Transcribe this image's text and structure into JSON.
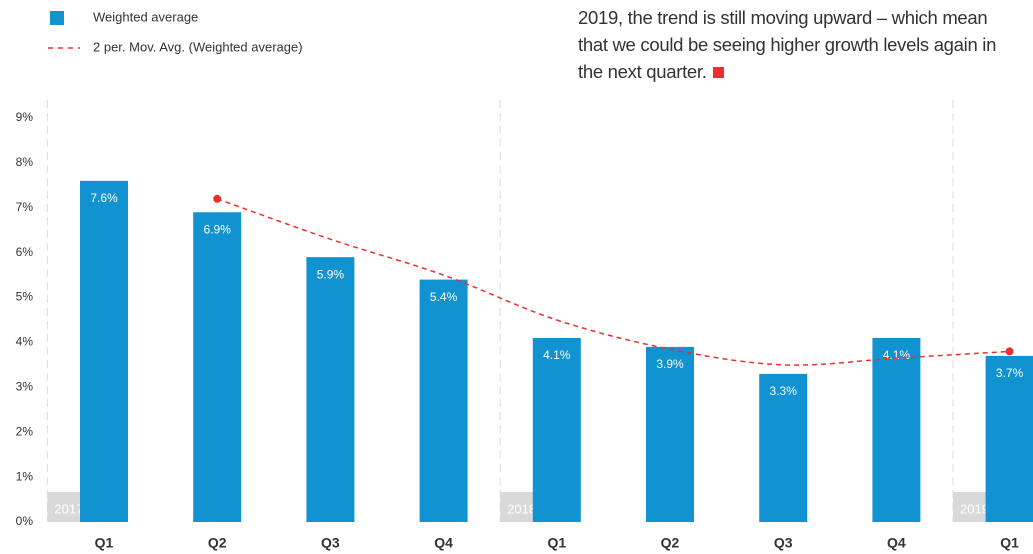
{
  "chart_data": {
    "type": "bar",
    "text": [
      "2019, the trend is still moving upward – which mean",
      "that we could be seeing higher growth levels again in",
      "the next quarter."
    ],
    "groups": [
      {
        "label": "2017",
        "categories": [
          "Q1",
          "Q2",
          "Q3",
          "Q4"
        ]
      },
      {
        "label": "2018",
        "categories": [
          "Q1",
          "Q2",
          "Q3",
          "Q4"
        ]
      },
      {
        "label": "2019",
        "categories": [
          "Q1"
        ]
      }
    ],
    "series": [
      {
        "name": "Weighted average",
        "color": "#1192d1",
        "values": [
          7.6,
          6.9,
          5.9,
          5.4,
          4.1,
          3.9,
          3.3,
          4.1,
          3.7
        ],
        "value_labels": [
          "7.6%",
          "6.9%",
          "5.9%",
          "5.4%",
          "4.1%",
          "3.9%",
          "3.3%",
          "4.1%",
          "3.7%"
        ]
      },
      {
        "name": "2 per. Mov. Avg.  (Weighted average)",
        "color": "#e8312f",
        "type": "line",
        "values": [
          null,
          7.2,
          6.3,
          5.5,
          4.5,
          3.85,
          3.5,
          3.65,
          3.8
        ]
      }
    ],
    "ylim": [
      0,
      9
    ],
    "yticks": [
      {
        "value": 0,
        "label": "0%"
      },
      {
        "value": 1,
        "label": "1%"
      },
      {
        "value": 2,
        "label": "2%"
      },
      {
        "value": 3,
        "label": "3%"
      },
      {
        "value": 4,
        "label": "4%"
      },
      {
        "value": 5,
        "label": "5%"
      },
      {
        "value": 6,
        "label": "6%"
      },
      {
        "value": 7,
        "label": "7%"
      },
      {
        "value": 8,
        "label": "8%"
      },
      {
        "value": 9,
        "label": "9%"
      }
    ]
  }
}
